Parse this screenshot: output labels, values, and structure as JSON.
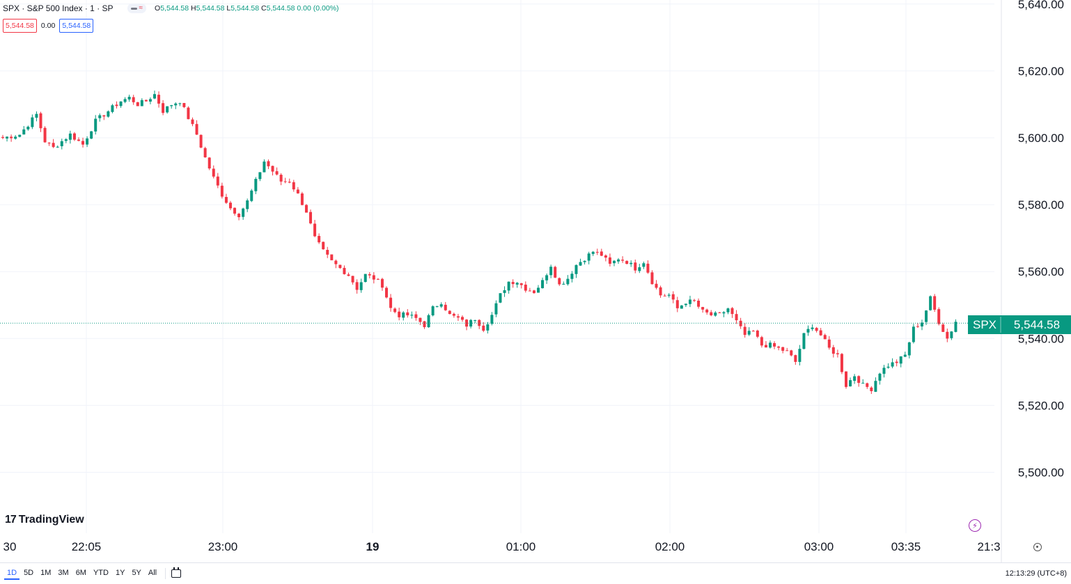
{
  "header": {
    "symbol_title": "SPX · S&P 500 Index · 1 · SP",
    "ohlc": {
      "o_label": "O",
      "o_value": "5,544.58",
      "h_label": "H",
      "h_value": "5,544.58",
      "l_label": "L",
      "l_value": "5,544.58",
      "c_label": "C",
      "c_value": "5,544.58",
      "change": "0.00 (0.00%)"
    },
    "bid": "5,544.58",
    "spread": "0.00",
    "ask": "5,544.58"
  },
  "brand": "TradingView",
  "current_price_label": {
    "symbol": "SPX",
    "price": "5,544.58"
  },
  "bottom_bar": {
    "ranges": [
      "1D",
      "5D",
      "1M",
      "3M",
      "6M",
      "YTD",
      "1Y",
      "5Y",
      "All"
    ],
    "active_range": "1D",
    "clock": "12:13:29 (UTC+8)"
  },
  "colors": {
    "up": "#089981",
    "down": "#f23645",
    "grid": "#f0f3fa",
    "accent": "#2962ff"
  },
  "chart_data": {
    "type": "candlestick",
    "y_ticks": [
      5640,
      5620,
      5600,
      5580,
      5560,
      5540,
      5520,
      5500
    ],
    "y_tick_labels": [
      "5,640.00",
      "5,620.00",
      "5,600.00",
      "5,580.00",
      "5,560.00",
      "5,540.00",
      "5,520.00",
      "5,500.00"
    ],
    "x_tick_labels": [
      "30",
      "22:05",
      "23:00",
      "19",
      "01:00",
      "02:00",
      "03:00",
      "03:35",
      "21:3"
    ],
    "x_ticks_bold": [
      false,
      false,
      false,
      true,
      false,
      false,
      false,
      false,
      false
    ],
    "last_price": 5544.58,
    "grid": true,
    "close_path": [
      [
        0,
        5600
      ],
      [
        4,
        5601
      ],
      [
        8,
        5607
      ],
      [
        10,
        5599
      ],
      [
        12,
        5597
      ],
      [
        16,
        5601
      ],
      [
        19,
        5598
      ],
      [
        22,
        5605
      ],
      [
        26,
        5609
      ],
      [
        28,
        5611
      ],
      [
        30,
        5612
      ],
      [
        32,
        5610
      ],
      [
        34,
        5611
      ],
      [
        36,
        5613
      ],
      [
        38,
        5608
      ],
      [
        40,
        5610
      ],
      [
        42,
        5611
      ],
      [
        44,
        5606
      ],
      [
        46,
        5601
      ],
      [
        48,
        5594
      ],
      [
        50,
        5588
      ],
      [
        52,
        5583
      ],
      [
        54,
        5579
      ],
      [
        56,
        5577
      ],
      [
        58,
        5581
      ],
      [
        60,
        5587
      ],
      [
        62,
        5593
      ],
      [
        64,
        5590
      ],
      [
        66,
        5587
      ],
      [
        68,
        5587
      ],
      [
        70,
        5583
      ],
      [
        72,
        5578
      ],
      [
        74,
        5570
      ],
      [
        76,
        5566
      ],
      [
        78,
        5563
      ],
      [
        80,
        5561
      ],
      [
        82,
        5559
      ],
      [
        84,
        5555
      ],
      [
        86,
        5559
      ],
      [
        88,
        5558
      ],
      [
        90,
        5556
      ],
      [
        92,
        5549
      ],
      [
        94,
        5547
      ],
      [
        96,
        5547
      ],
      [
        98,
        5546
      ],
      [
        100,
        5544
      ],
      [
        102,
        5549
      ],
      [
        104,
        5551
      ],
      [
        106,
        5547
      ],
      [
        108,
        5546
      ],
      [
        110,
        5544
      ],
      [
        112,
        5546
      ],
      [
        114,
        5543
      ],
      [
        116,
        5547
      ],
      [
        118,
        5553
      ],
      [
        120,
        5557
      ],
      [
        122,
        5557
      ],
      [
        124,
        5555
      ],
      [
        126,
        5554
      ],
      [
        128,
        5557
      ],
      [
        130,
        5562
      ],
      [
        132,
        5556
      ],
      [
        134,
        5558
      ],
      [
        136,
        5562
      ],
      [
        138,
        5564
      ],
      [
        140,
        5566
      ],
      [
        142,
        5565
      ],
      [
        144,
        5562
      ],
      [
        146,
        5564
      ],
      [
        148,
        5563
      ],
      [
        150,
        5561
      ],
      [
        152,
        5563
      ],
      [
        154,
        5557
      ],
      [
        156,
        5553
      ],
      [
        158,
        5553
      ],
      [
        160,
        5549
      ],
      [
        162,
        5551
      ],
      [
        164,
        5551
      ],
      [
        166,
        5548
      ],
      [
        168,
        5547
      ],
      [
        170,
        5547
      ],
      [
        172,
        5549
      ],
      [
        174,
        5545
      ],
      [
        176,
        5541
      ],
      [
        178,
        5542
      ],
      [
        180,
        5538
      ],
      [
        182,
        5538
      ],
      [
        184,
        5537
      ],
      [
        186,
        5536
      ],
      [
        188,
        5533
      ],
      [
        190,
        5541
      ],
      [
        192,
        5544
      ],
      [
        194,
        5541
      ],
      [
        196,
        5537
      ],
      [
        198,
        5535
      ],
      [
        200,
        5526
      ],
      [
        202,
        5529
      ],
      [
        204,
        5526
      ],
      [
        206,
        5525
      ],
      [
        208,
        5530
      ],
      [
        210,
        5532
      ],
      [
        212,
        5533
      ],
      [
        214,
        5535
      ],
      [
        216,
        5543
      ],
      [
        218,
        5545
      ],
      [
        220,
        5552
      ],
      [
        222,
        5545
      ],
      [
        224,
        5540
      ],
      [
        226,
        5545
      ]
    ]
  }
}
